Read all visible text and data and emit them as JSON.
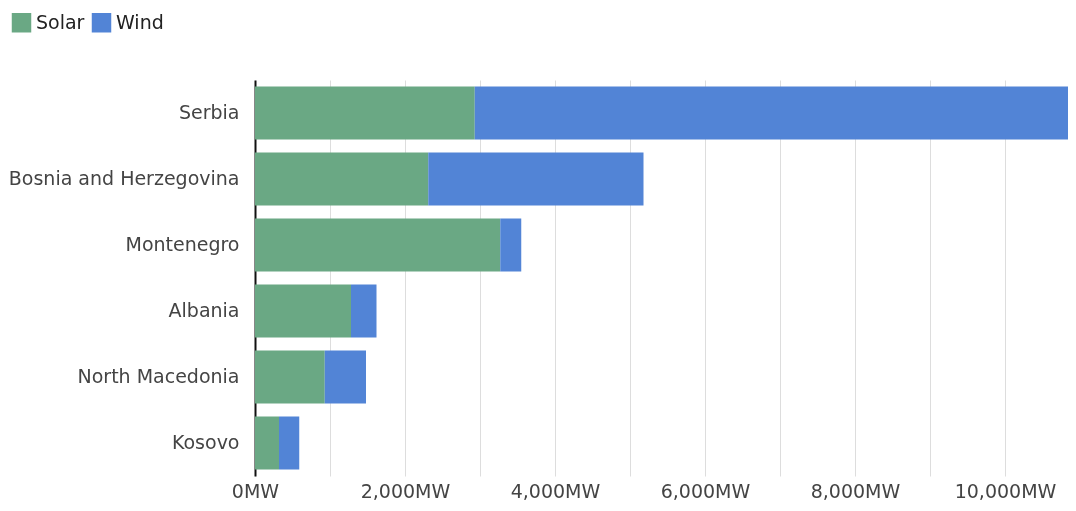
{
  "chart_data": {
    "type": "bar",
    "orientation": "horizontal",
    "stacked": true,
    "categories": [
      "Serbia",
      "Bosnia and Herzegovina",
      "Montenegro",
      "Albania",
      "North Macedonia",
      "Kosovo"
    ],
    "series": [
      {
        "name": "Solar",
        "color": "#6aa884",
        "values": [
          2930,
          2310,
          3270,
          1280,
          930,
          320
        ]
      },
      {
        "name": "Wind",
        "color": "#5284d6",
        "values": [
          7910,
          2870,
          280,
          340,
          550,
          270
        ]
      }
    ],
    "xlim": [
      0,
      10840
    ],
    "xticks": [
      {
        "value": 0,
        "label": "0MW"
      },
      {
        "value": 1000,
        "label": null
      },
      {
        "value": 2000,
        "label": "2,000MW"
      },
      {
        "value": 3000,
        "label": null
      },
      {
        "value": 4000,
        "label": "4,000MW"
      },
      {
        "value": 5000,
        "label": null
      },
      {
        "value": 6000,
        "label": "6,000MW"
      },
      {
        "value": 7000,
        "label": null
      },
      {
        "value": 8000,
        "label": "8,000MW"
      },
      {
        "value": 9000,
        "label": null
      },
      {
        "value": 10000,
        "label": "10,000MW"
      }
    ],
    "grid": "x",
    "legend": "top left"
  }
}
